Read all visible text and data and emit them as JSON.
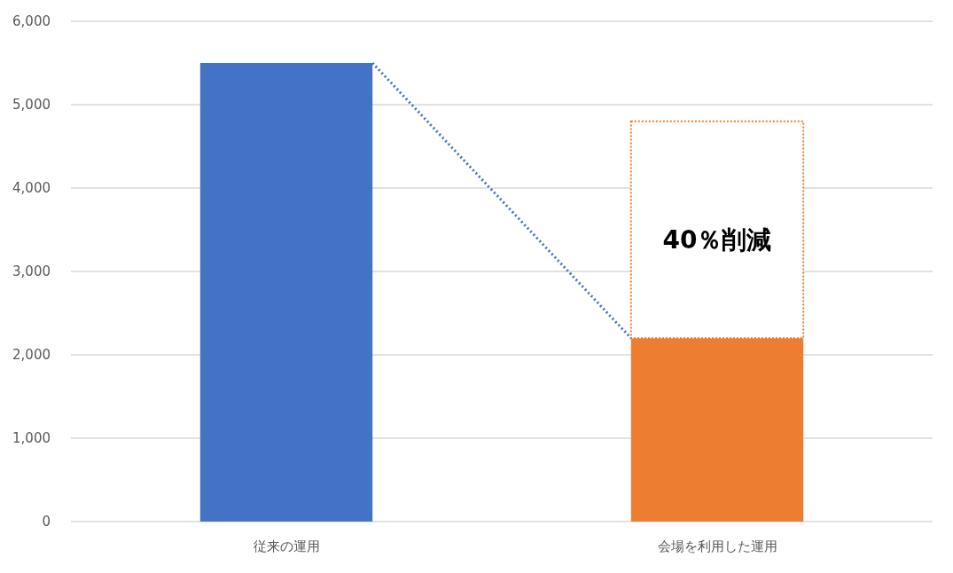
{
  "chart_data": {
    "type": "bar",
    "stacked": true,
    "categories": [
      "従来の運用",
      "会場を利用した運用"
    ],
    "series": [
      {
        "colors": [
          "#4472c4",
          "#ed7d31"
        ],
        "values": [
          5500,
          2200
        ]
      },
      {
        "color": "#ed7d31",
        "line_style": "dotted",
        "values": [
          null,
          2600
        ]
      }
    ],
    "ylim": [
      0,
      6000
    ],
    "yticks": [
      0,
      {
        "value": 1000,
        "label": "1,000"
      },
      {
        "value": 2000,
        "label": "2,000"
      },
      {
        "value": 3000,
        "label": "3,000"
      },
      {
        "value": 4000,
        "label": "4,000"
      },
      {
        "value": 5000,
        "label": "5,000"
      },
      {
        "value": 6000,
        "label": "6,000"
      }
    ],
    "grid": "y",
    "annotations": [
      "40％削減"
    ]
  }
}
